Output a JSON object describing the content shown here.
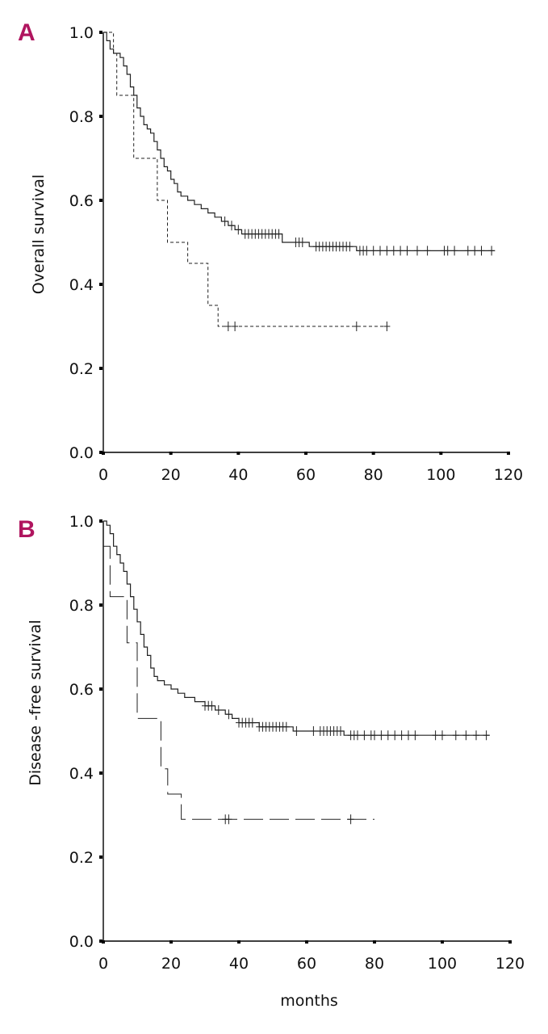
{
  "chart_data": [
    {
      "panel": "A",
      "type": "line",
      "xlabel": "",
      "ylabel": "Overall survival",
      "xlim": [
        0,
        120
      ],
      "ylim": [
        0,
        1
      ],
      "xticks": [
        "0",
        "20",
        "40",
        "60",
        "80",
        "100",
        "120"
      ],
      "yticks": [
        "0.0",
        "0.2",
        "0.4",
        "0.6",
        "0.8",
        "1.0"
      ],
      "series": [
        {
          "style": "solid",
          "points": [
            [
              0,
              1.0
            ],
            [
              1,
              0.98
            ],
            [
              2,
              0.96
            ],
            [
              3,
              0.95
            ],
            [
              5,
              0.94
            ],
            [
              6,
              0.92
            ],
            [
              7,
              0.9
            ],
            [
              8,
              0.87
            ],
            [
              9,
              0.85
            ],
            [
              10,
              0.82
            ],
            [
              11,
              0.8
            ],
            [
              12,
              0.78
            ],
            [
              13,
              0.77
            ],
            [
              14,
              0.76
            ],
            [
              15,
              0.74
            ],
            [
              16,
              0.72
            ],
            [
              17,
              0.7
            ],
            [
              18,
              0.68
            ],
            [
              19,
              0.67
            ],
            [
              20,
              0.65
            ],
            [
              21,
              0.64
            ],
            [
              22,
              0.62
            ],
            [
              23,
              0.61
            ],
            [
              25,
              0.6
            ],
            [
              27,
              0.59
            ],
            [
              29,
              0.58
            ],
            [
              31,
              0.57
            ],
            [
              33,
              0.56
            ],
            [
              35,
              0.55
            ],
            [
              37,
              0.54
            ],
            [
              39,
              0.53
            ],
            [
              41,
              0.52
            ],
            [
              52,
              0.52
            ],
            [
              53,
              0.5
            ],
            [
              60,
              0.5
            ],
            [
              61,
              0.49
            ],
            [
              74,
              0.49
            ],
            [
              75,
              0.48
            ],
            [
              116,
              0.48
            ]
          ],
          "censored": [
            36,
            38,
            40,
            42,
            43,
            44,
            45,
            46,
            47,
            48,
            49,
            50,
            51,
            52,
            57,
            58,
            59,
            63,
            64,
            65,
            66,
            67,
            68,
            69,
            70,
            71,
            72,
            73,
            76,
            77,
            78,
            80,
            82,
            84,
            86,
            88,
            90,
            93,
            96,
            101,
            102,
            104,
            108,
            110,
            112,
            115
          ]
        },
        {
          "style": "dashed",
          "points": [
            [
              0,
              1.0
            ],
            [
              2,
              1.0
            ],
            [
              3,
              0.95
            ],
            [
              4,
              0.85
            ],
            [
              8,
              0.85
            ],
            [
              9,
              0.7
            ],
            [
              15,
              0.7
            ],
            [
              16,
              0.6
            ],
            [
              18,
              0.6
            ],
            [
              19,
              0.5
            ],
            [
              24,
              0.5
            ],
            [
              25,
              0.45
            ],
            [
              30,
              0.45
            ],
            [
              31,
              0.35
            ],
            [
              33,
              0.35
            ],
            [
              34,
              0.3
            ],
            [
              84,
              0.3
            ]
          ],
          "censored": [
            37,
            39,
            75,
            84
          ]
        }
      ]
    },
    {
      "panel": "B",
      "type": "line",
      "xlabel": "months",
      "ylabel": "Disease -free survival",
      "xlim": [
        0,
        120
      ],
      "ylim": [
        0,
        1
      ],
      "xticks": [
        "0",
        "20",
        "40",
        "60",
        "80",
        "100",
        "120"
      ],
      "yticks": [
        "0.0",
        "0.2",
        "0.4",
        "0.6",
        "0.8",
        "1.0"
      ],
      "series": [
        {
          "style": "solid",
          "points": [
            [
              0,
              1.0
            ],
            [
              1,
              0.99
            ],
            [
              2,
              0.97
            ],
            [
              3,
              0.94
            ],
            [
              4,
              0.92
            ],
            [
              5,
              0.9
            ],
            [
              6,
              0.88
            ],
            [
              7,
              0.85
            ],
            [
              8,
              0.82
            ],
            [
              9,
              0.79
            ],
            [
              10,
              0.76
            ],
            [
              11,
              0.73
            ],
            [
              12,
              0.7
            ],
            [
              13,
              0.68
            ],
            [
              14,
              0.65
            ],
            [
              15,
              0.63
            ],
            [
              16,
              0.62
            ],
            [
              18,
              0.61
            ],
            [
              20,
              0.6
            ],
            [
              22,
              0.59
            ],
            [
              24,
              0.58
            ],
            [
              27,
              0.57
            ],
            [
              30,
              0.56
            ],
            [
              33,
              0.55
            ],
            [
              36,
              0.54
            ],
            [
              38,
              0.53
            ],
            [
              40,
              0.52
            ],
            [
              45,
              0.52
            ],
            [
              46,
              0.51
            ],
            [
              55,
              0.51
            ],
            [
              56,
              0.5
            ],
            [
              70,
              0.5
            ],
            [
              71,
              0.49
            ],
            [
              114,
              0.49
            ]
          ],
          "censored": [
            30,
            31,
            32,
            34,
            37,
            40,
            41,
            42,
            43,
            44,
            46,
            47,
            48,
            49,
            50,
            51,
            52,
            53,
            54,
            57,
            62,
            64,
            65,
            66,
            67,
            68,
            69,
            70,
            73,
            74,
            75,
            77,
            79,
            80,
            82,
            84,
            86,
            88,
            90,
            92,
            98,
            100,
            104,
            107,
            110,
            113
          ]
        },
        {
          "style": "dashed",
          "points": [
            [
              0,
              0.94
            ],
            [
              1,
              0.94
            ],
            [
              2,
              0.82
            ],
            [
              6,
              0.82
            ],
            [
              7,
              0.71
            ],
            [
              9,
              0.71
            ],
            [
              10,
              0.53
            ],
            [
              16,
              0.53
            ],
            [
              17,
              0.41
            ],
            [
              18,
              0.41
            ],
            [
              19,
              0.35
            ],
            [
              22,
              0.35
            ],
            [
              23,
              0.29
            ],
            [
              80,
              0.29
            ]
          ],
          "censored": [
            36,
            37,
            73
          ]
        }
      ]
    }
  ]
}
